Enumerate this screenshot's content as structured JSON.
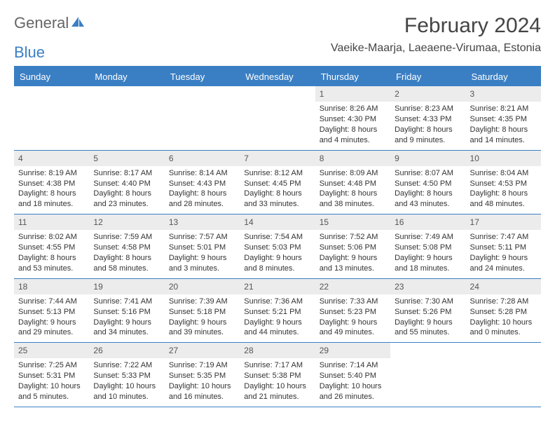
{
  "logo": {
    "part1": "General",
    "part2": "Blue"
  },
  "title": "February 2024",
  "location": "Vaeike-Maarja, Laeaene-Virumaa, Estonia",
  "colors": {
    "header_bg": "#3a7fc4",
    "header_text": "#ffffff",
    "daynum_bg": "#ececec",
    "border": "#3a7fc4",
    "text": "#333333",
    "logo_blue": "#3a7fc4",
    "logo_gray": "#666666",
    "background": "#ffffff"
  },
  "day_headers": [
    "Sunday",
    "Monday",
    "Tuesday",
    "Wednesday",
    "Thursday",
    "Friday",
    "Saturday"
  ],
  "weeks": [
    [
      null,
      null,
      null,
      null,
      {
        "n": "1",
        "sr": "8:26 AM",
        "ss": "4:30 PM",
        "dl": "8 hours and 4 minutes."
      },
      {
        "n": "2",
        "sr": "8:23 AM",
        "ss": "4:33 PM",
        "dl": "8 hours and 9 minutes."
      },
      {
        "n": "3",
        "sr": "8:21 AM",
        "ss": "4:35 PM",
        "dl": "8 hours and 14 minutes."
      }
    ],
    [
      {
        "n": "4",
        "sr": "8:19 AM",
        "ss": "4:38 PM",
        "dl": "8 hours and 18 minutes."
      },
      {
        "n": "5",
        "sr": "8:17 AM",
        "ss": "4:40 PM",
        "dl": "8 hours and 23 minutes."
      },
      {
        "n": "6",
        "sr": "8:14 AM",
        "ss": "4:43 PM",
        "dl": "8 hours and 28 minutes."
      },
      {
        "n": "7",
        "sr": "8:12 AM",
        "ss": "4:45 PM",
        "dl": "8 hours and 33 minutes."
      },
      {
        "n": "8",
        "sr": "8:09 AM",
        "ss": "4:48 PM",
        "dl": "8 hours and 38 minutes."
      },
      {
        "n": "9",
        "sr": "8:07 AM",
        "ss": "4:50 PM",
        "dl": "8 hours and 43 minutes."
      },
      {
        "n": "10",
        "sr": "8:04 AM",
        "ss": "4:53 PM",
        "dl": "8 hours and 48 minutes."
      }
    ],
    [
      {
        "n": "11",
        "sr": "8:02 AM",
        "ss": "4:55 PM",
        "dl": "8 hours and 53 minutes."
      },
      {
        "n": "12",
        "sr": "7:59 AM",
        "ss": "4:58 PM",
        "dl": "8 hours and 58 minutes."
      },
      {
        "n": "13",
        "sr": "7:57 AM",
        "ss": "5:01 PM",
        "dl": "9 hours and 3 minutes."
      },
      {
        "n": "14",
        "sr": "7:54 AM",
        "ss": "5:03 PM",
        "dl": "9 hours and 8 minutes."
      },
      {
        "n": "15",
        "sr": "7:52 AM",
        "ss": "5:06 PM",
        "dl": "9 hours and 13 minutes."
      },
      {
        "n": "16",
        "sr": "7:49 AM",
        "ss": "5:08 PM",
        "dl": "9 hours and 18 minutes."
      },
      {
        "n": "17",
        "sr": "7:47 AM",
        "ss": "5:11 PM",
        "dl": "9 hours and 24 minutes."
      }
    ],
    [
      {
        "n": "18",
        "sr": "7:44 AM",
        "ss": "5:13 PM",
        "dl": "9 hours and 29 minutes."
      },
      {
        "n": "19",
        "sr": "7:41 AM",
        "ss": "5:16 PM",
        "dl": "9 hours and 34 minutes."
      },
      {
        "n": "20",
        "sr": "7:39 AM",
        "ss": "5:18 PM",
        "dl": "9 hours and 39 minutes."
      },
      {
        "n": "21",
        "sr": "7:36 AM",
        "ss": "5:21 PM",
        "dl": "9 hours and 44 minutes."
      },
      {
        "n": "22",
        "sr": "7:33 AM",
        "ss": "5:23 PM",
        "dl": "9 hours and 49 minutes."
      },
      {
        "n": "23",
        "sr": "7:30 AM",
        "ss": "5:26 PM",
        "dl": "9 hours and 55 minutes."
      },
      {
        "n": "24",
        "sr": "7:28 AM",
        "ss": "5:28 PM",
        "dl": "10 hours and 0 minutes."
      }
    ],
    [
      {
        "n": "25",
        "sr": "7:25 AM",
        "ss": "5:31 PM",
        "dl": "10 hours and 5 minutes."
      },
      {
        "n": "26",
        "sr": "7:22 AM",
        "ss": "5:33 PM",
        "dl": "10 hours and 10 minutes."
      },
      {
        "n": "27",
        "sr": "7:19 AM",
        "ss": "5:35 PM",
        "dl": "10 hours and 16 minutes."
      },
      {
        "n": "28",
        "sr": "7:17 AM",
        "ss": "5:38 PM",
        "dl": "10 hours and 21 minutes."
      },
      {
        "n": "29",
        "sr": "7:14 AM",
        "ss": "5:40 PM",
        "dl": "10 hours and 26 minutes."
      },
      null,
      null
    ]
  ],
  "labels": {
    "sunrise": "Sunrise:",
    "sunset": "Sunset:",
    "daylight": "Daylight:"
  }
}
